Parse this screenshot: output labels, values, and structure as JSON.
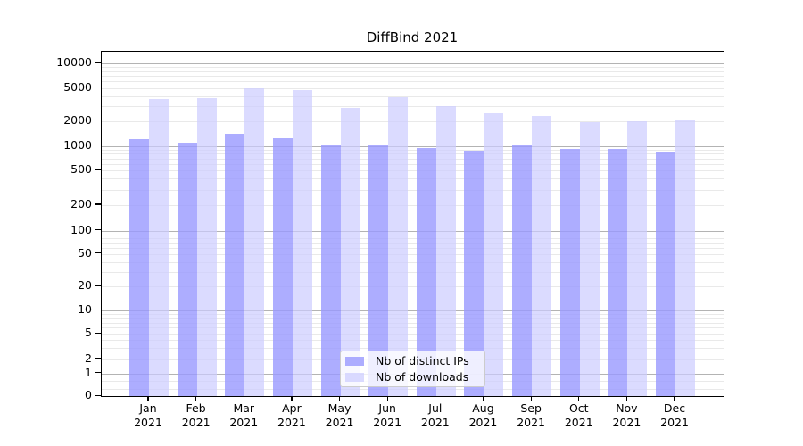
{
  "chart_data": {
    "type": "bar",
    "title": "DiffBind 2021",
    "categories": [
      "Jan",
      "Feb",
      "Mar",
      "Apr",
      "May",
      "Jun",
      "Jul",
      "Aug",
      "Sep",
      "Oct",
      "Nov",
      "Dec"
    ],
    "category_year": "2021",
    "series": [
      {
        "name": "Nb of distinct IPs",
        "color": "#9999ff",
        "fill": "rgba(153,153,255,0.8)",
        "values": [
          1190,
          1080,
          1400,
          1220,
          1010,
          1030,
          930,
          860,
          1010,
          920,
          910,
          850
        ]
      },
      {
        "name": "Nb of downloads",
        "color": "#ccccff",
        "fill": "rgba(204,204,255,0.7)",
        "values": [
          3700,
          3750,
          5000,
          4750,
          2850,
          3900,
          3050,
          2500,
          2320,
          1930,
          2000,
          2070
        ]
      }
    ],
    "xlabel": "",
    "ylabel": "",
    "yscale": "log-with-zero",
    "yticks": [
      0,
      1,
      2,
      5,
      10,
      20,
      50,
      100,
      200,
      500,
      1000,
      2000,
      5000,
      10000
    ],
    "ylim": [
      0,
      14000
    ],
    "grid": true,
    "legend": {
      "position": "lower-center",
      "labels": [
        "Nb of distinct IPs",
        "Nb of downloads"
      ]
    },
    "colors": {
      "grid_major": "#b3b3b3",
      "grid_minor": "#e9e9e9",
      "axis": "#000000",
      "background": "#ffffff"
    }
  }
}
